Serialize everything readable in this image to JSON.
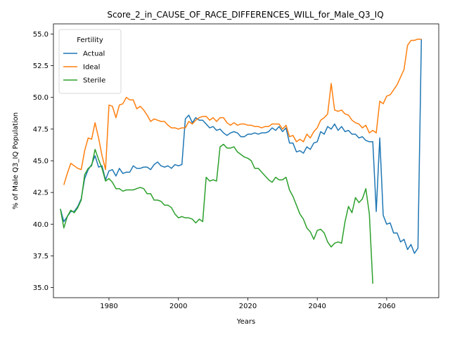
{
  "chart_data": {
    "type": "line",
    "title": "Score_2_in_CAUSE_OF_RACE_DIFFERENCES_WILL_for_Male_Q3_IQ",
    "xlabel": "Years",
    "ylabel": "% of Male Q3_IQ Population",
    "xlim": [
      1964,
      2075
    ],
    "ylim": [
      34.2,
      55.8
    ],
    "xticks": [
      1980,
      2000,
      2020,
      2040,
      2060
    ],
    "xtick_labels": [
      "1980",
      "2000",
      "2020",
      "2040",
      "2060"
    ],
    "yticks": [
      35.0,
      37.5,
      40.0,
      42.5,
      45.0,
      47.5,
      50.0,
      52.5,
      55.0
    ],
    "ytick_labels": [
      "35.0",
      "37.5",
      "40.0",
      "42.5",
      "45.0",
      "47.5",
      "50.0",
      "52.5",
      "55.0"
    ],
    "grid": false,
    "legend": {
      "title": "Fertility",
      "position": "upper left"
    },
    "series": [
      {
        "name": "Actual",
        "color": "#1f77b4",
        "x": [
          1966,
          1967,
          1968,
          1969,
          1970,
          1971,
          1972,
          1973,
          1974,
          1975,
          1976,
          1977,
          1978,
          1979,
          1980,
          1981,
          1982,
          1983,
          1984,
          1985,
          1986,
          1987,
          1988,
          1989,
          1990,
          1991,
          1992,
          1993,
          1994,
          1995,
          1996,
          1997,
          1998,
          1999,
          2000,
          2001,
          2002,
          2003,
          2004,
          2005,
          2006,
          2007,
          2008,
          2009,
          2010,
          2011,
          2012,
          2013,
          2014,
          2015,
          2016,
          2017,
          2018,
          2019,
          2020,
          2021,
          2022,
          2023,
          2024,
          2025,
          2026,
          2027,
          2028,
          2029,
          2030,
          2031,
          2032,
          2033,
          2034,
          2035,
          2036,
          2037,
          2038,
          2039,
          2040,
          2041,
          2042,
          2043,
          2044,
          2045,
          2046,
          2047,
          2048,
          2049,
          2050,
          2051,
          2052,
          2053,
          2054,
          2055,
          2056,
          2057,
          2058,
          2059,
          2060,
          2061,
          2062,
          2063,
          2064,
          2065,
          2066,
          2067,
          2068,
          2069,
          2070
        ],
        "y": [
          41.2,
          40.2,
          40.6,
          41.0,
          41.0,
          41.4,
          42.0,
          43.6,
          44.3,
          44.7,
          45.4,
          44.5,
          44.6,
          43.5,
          44.2,
          44.3,
          43.8,
          44.4,
          44.0,
          44.1,
          44.1,
          44.6,
          44.4,
          44.4,
          44.5,
          44.5,
          44.3,
          44.7,
          44.9,
          44.6,
          44.5,
          44.6,
          44.4,
          44.7,
          44.6,
          44.7,
          48.3,
          48.6,
          48.0,
          48.4,
          48.2,
          48.2,
          47.9,
          47.6,
          47.7,
          47.4,
          47.5,
          47.2,
          47.0,
          47.2,
          47.3,
          47.2,
          46.9,
          46.9,
          47.1,
          47.1,
          47.2,
          47.1,
          47.2,
          47.2,
          47.3,
          47.6,
          47.4,
          47.7,
          47.3,
          47.6,
          46.4,
          46.4,
          45.7,
          45.8,
          45.6,
          46.1,
          45.9,
          46.4,
          46.5,
          47.3,
          47.1,
          47.7,
          47.5,
          47.9,
          47.4,
          47.7,
          47.3,
          47.4,
          47.1,
          47.1,
          46.8,
          46.9,
          46.6,
          46.5,
          46.5,
          41.0,
          46.8,
          40.7,
          40.0,
          40.1,
          39.3,
          39.3,
          38.6,
          38.8,
          38.0,
          38.4,
          37.7,
          38.1,
          54.6
        ]
      },
      {
        "name": "Ideal",
        "color": "#ff7f0e",
        "x": [
          1967,
          1968,
          1969,
          1970,
          1971,
          1972,
          1973,
          1974,
          1975,
          1976,
          1977,
          1978,
          1979,
          1980,
          1981,
          1982,
          1983,
          1984,
          1985,
          1986,
          1987,
          1988,
          1989,
          1990,
          1991,
          1992,
          1993,
          1994,
          1995,
          1996,
          1997,
          1998,
          1999,
          2000,
          2001,
          2002,
          2003,
          2004,
          2005,
          2006,
          2007,
          2008,
          2009,
          2010,
          2011,
          2012,
          2013,
          2014,
          2015,
          2016,
          2017,
          2018,
          2019,
          2020,
          2021,
          2022,
          2023,
          2024,
          2025,
          2026,
          2027,
          2028,
          2029,
          2030,
          2031,
          2032,
          2033,
          2034,
          2035,
          2036,
          2037,
          2038,
          2039,
          2040,
          2041,
          2042,
          2043,
          2044,
          2045,
          2046,
          2047,
          2048,
          2049,
          2050,
          2051,
          2052,
          2053,
          2054,
          2055,
          2056,
          2057,
          2058,
          2059,
          2060,
          2061,
          2062,
          2063,
          2064,
          2065,
          2066,
          2067,
          2068,
          2069,
          2070
        ],
        "y": [
          43.1,
          44.0,
          44.8,
          44.6,
          44.4,
          44.3,
          45.8,
          46.8,
          46.7,
          48.0,
          46.8,
          45.4,
          44.3,
          49.4,
          49.3,
          48.4,
          49.4,
          49.5,
          50.0,
          49.8,
          49.8,
          49.1,
          49.3,
          49.0,
          48.6,
          48.1,
          48.3,
          48.2,
          48.1,
          48.1,
          47.8,
          47.6,
          47.6,
          47.5,
          47.6,
          47.6,
          48.1,
          47.9,
          48.2,
          48.4,
          48.5,
          48.5,
          48.2,
          48.4,
          48.1,
          48.4,
          48.4,
          48.0,
          47.8,
          48.0,
          47.8,
          47.9,
          47.9,
          47.8,
          47.8,
          47.7,
          47.7,
          47.6,
          47.7,
          47.7,
          47.9,
          47.9,
          47.9,
          47.5,
          47.8,
          46.9,
          47.0,
          46.5,
          46.7,
          46.5,
          47.1,
          46.8,
          47.3,
          47.6,
          48.2,
          48.4,
          48.7,
          51.1,
          49.0,
          48.9,
          49.0,
          48.7,
          48.6,
          48.2,
          48.0,
          47.9,
          47.6,
          47.8,
          47.2,
          47.4,
          47.2,
          49.7,
          49.5,
          50.1,
          50.2,
          50.6,
          51.0,
          51.6,
          52.2,
          54.1,
          54.5,
          54.5,
          54.6,
          54.6
        ]
      },
      {
        "name": "Sterile",
        "color": "#2ca02c",
        "x": [
          1966,
          1967,
          1968,
          1969,
          1970,
          1971,
          1972,
          1973,
          1974,
          1975,
          1976,
          1977,
          1978,
          1979,
          1980,
          1981,
          1982,
          1983,
          1984,
          1985,
          1986,
          1987,
          1988,
          1989,
          1990,
          1991,
          1992,
          1993,
          1994,
          1995,
          1996,
          1997,
          1998,
          1999,
          2000,
          2001,
          2002,
          2003,
          2004,
          2005,
          2006,
          2007,
          2008,
          2009,
          2010,
          2011,
          2012,
          2013,
          2014,
          2015,
          2016,
          2017,
          2018,
          2019,
          2020,
          2021,
          2022,
          2023,
          2024,
          2025,
          2026,
          2027,
          2028,
          2029,
          2030,
          2031,
          2032,
          2033,
          2034,
          2035,
          2036,
          2037,
          2038,
          2039,
          2040,
          2041,
          2042,
          2043,
          2044,
          2045,
          2046,
          2047,
          2048,
          2049,
          2050,
          2051,
          2052,
          2053,
          2054,
          2055,
          2056
        ],
        "y": [
          41.2,
          39.7,
          40.6,
          41.1,
          40.9,
          41.3,
          41.9,
          43.9,
          44.4,
          44.6,
          45.9,
          45.1,
          44.4,
          43.4,
          43.6,
          43.3,
          42.8,
          42.8,
          42.6,
          42.7,
          42.7,
          42.7,
          42.8,
          42.9,
          42.8,
          42.4,
          42.4,
          41.9,
          41.9,
          41.8,
          41.5,
          41.5,
          41.3,
          40.8,
          40.5,
          40.6,
          40.5,
          40.5,
          40.4,
          40.1,
          40.4,
          40.2,
          43.7,
          43.4,
          43.5,
          43.4,
          46.1,
          46.3,
          46.0,
          46.0,
          46.1,
          45.7,
          45.5,
          45.3,
          45.2,
          45.0,
          44.4,
          44.4,
          44.1,
          43.8,
          43.5,
          43.3,
          43.7,
          43.5,
          43.5,
          43.7,
          42.7,
          42.2,
          41.5,
          40.8,
          40.4,
          39.7,
          39.4,
          38.8,
          39.5,
          39.6,
          39.3,
          38.6,
          38.2,
          38.5,
          38.6,
          38.5,
          40.2,
          41.4,
          40.9,
          42.1,
          41.7,
          42.0,
          42.8,
          40.8,
          35.3
        ]
      }
    ]
  }
}
